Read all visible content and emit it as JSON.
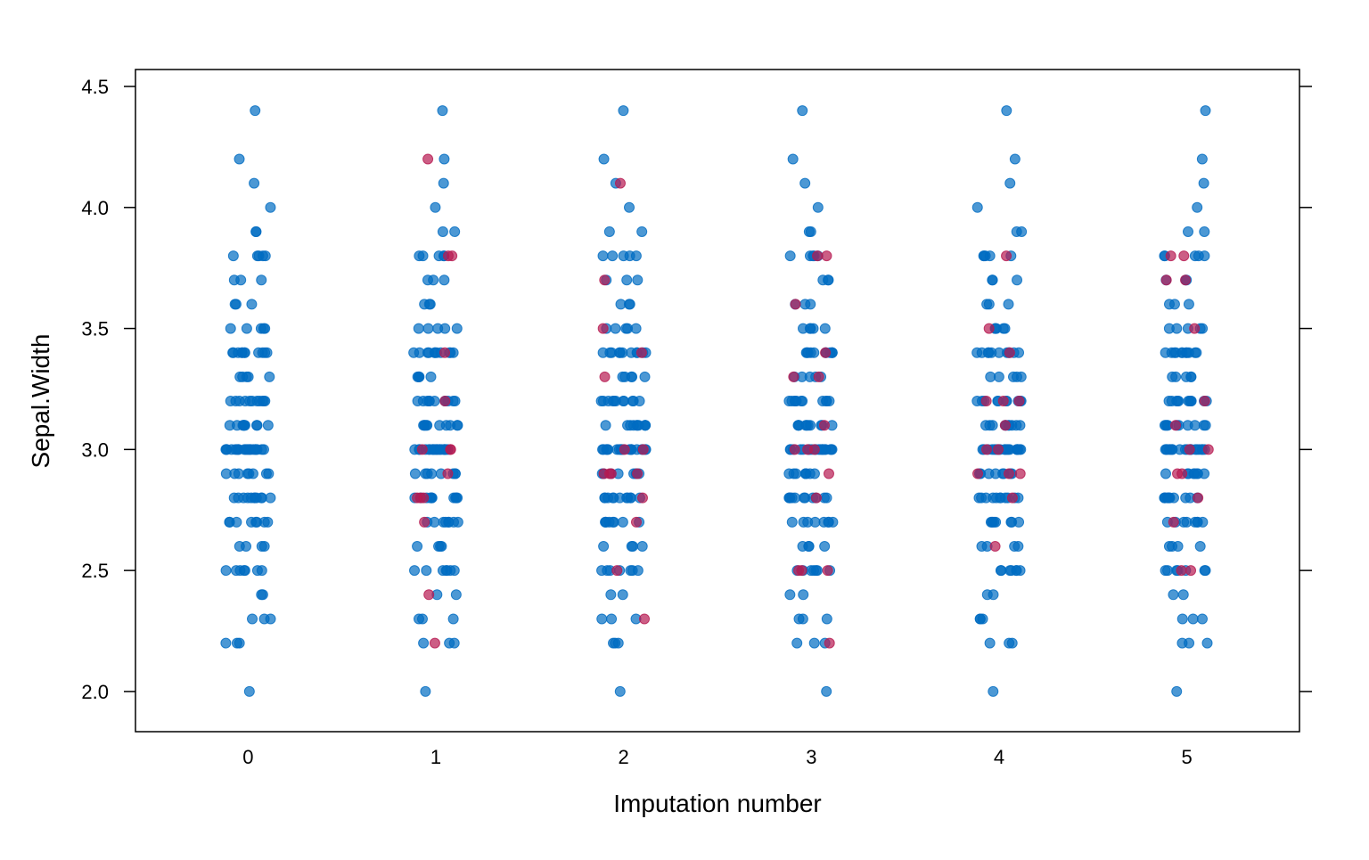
{
  "chart_data": {
    "type": "scatter",
    "subtype": "strip",
    "title": "",
    "xlabel": "Imputation number",
    "ylabel": "Sepal.Width",
    "xlim": [
      -0.6,
      5.6
    ],
    "ylim": [
      1.834,
      4.57
    ],
    "x_ticks": [
      "0",
      "1",
      "2",
      "3",
      "4",
      "5"
    ],
    "y_ticks": [
      "2.0",
      "2.5",
      "3.0",
      "3.5",
      "4.0",
      "4.5"
    ],
    "y_tick_values": [
      2.0,
      2.5,
      3.0,
      3.5,
      4.0,
      4.5
    ],
    "grid": false,
    "legend": "none",
    "colors": {
      "observed": "#006CC2",
      "imputed": "#B61A51"
    },
    "observed": [
      4.4,
      4.2,
      4.1,
      4.0,
      3.9,
      3.9,
      3.8,
      3.8,
      3.8,
      3.8,
      3.8,
      3.7,
      3.7,
      3.7,
      3.6,
      3.6,
      3.6,
      3.5,
      3.5,
      3.5,
      3.5,
      3.5,
      3.4,
      3.4,
      3.4,
      3.4,
      3.4,
      3.4,
      3.4,
      3.4,
      3.4,
      3.4,
      3.4,
      3.3,
      3.3,
      3.3,
      3.3,
      3.3,
      3.2,
      3.2,
      3.2,
      3.2,
      3.2,
      3.2,
      3.2,
      3.2,
      3.2,
      3.2,
      3.2,
      3.1,
      3.1,
      3.1,
      3.1,
      3.1,
      3.1,
      3.1,
      3.1,
      3.1,
      3.1,
      3.0,
      3.0,
      3.0,
      3.0,
      3.0,
      3.0,
      3.0,
      3.0,
      3.0,
      3.0,
      3.0,
      3.0,
      3.0,
      3.0,
      3.0,
      3.0,
      3.0,
      3.0,
      3.0,
      3.0,
      2.9,
      2.9,
      2.9,
      2.9,
      2.9,
      2.9,
      2.9,
      2.9,
      2.8,
      2.8,
      2.8,
      2.8,
      2.8,
      2.8,
      2.8,
      2.8,
      2.8,
      2.8,
      2.8,
      2.7,
      2.7,
      2.7,
      2.7,
      2.7,
      2.7,
      2.7,
      2.7,
      2.6,
      2.6,
      2.6,
      2.6,
      2.5,
      2.5,
      2.5,
      2.5,
      2.5,
      2.5,
      2.5,
      2.4,
      2.4,
      2.3,
      2.3,
      2.3,
      2.2,
      2.2,
      2.2,
      2.0
    ],
    "imputed": [
      [],
      [
        4.2,
        3.8,
        3.8,
        3.4,
        3.2,
        3.0,
        3.0,
        3.0,
        2.9,
        2.8,
        2.8,
        2.8,
        2.7,
        2.4,
        2.2
      ],
      [
        4.1,
        3.7,
        3.5,
        3.4,
        3.3,
        3.0,
        3.0,
        2.9,
        2.9,
        2.9,
        2.9,
        2.8,
        2.7,
        2.5,
        2.3
      ],
      [
        3.8,
        3.8,
        3.6,
        3.4,
        3.3,
        3.3,
        3.1,
        3.0,
        3.0,
        3.0,
        2.9,
        2.8,
        2.5,
        2.5,
        2.5,
        2.2
      ],
      [
        3.8,
        3.5,
        3.4,
        3.2,
        3.2,
        3.2,
        3.1,
        3.0,
        3.0,
        2.9,
        2.9,
        2.9,
        2.8,
        2.6
      ],
      [
        3.8,
        3.8,
        3.7,
        3.7,
        3.5,
        3.2,
        3.1,
        3.0,
        3.0,
        2.9,
        2.9,
        2.8,
        2.7,
        2.5,
        2.5
      ]
    ]
  }
}
